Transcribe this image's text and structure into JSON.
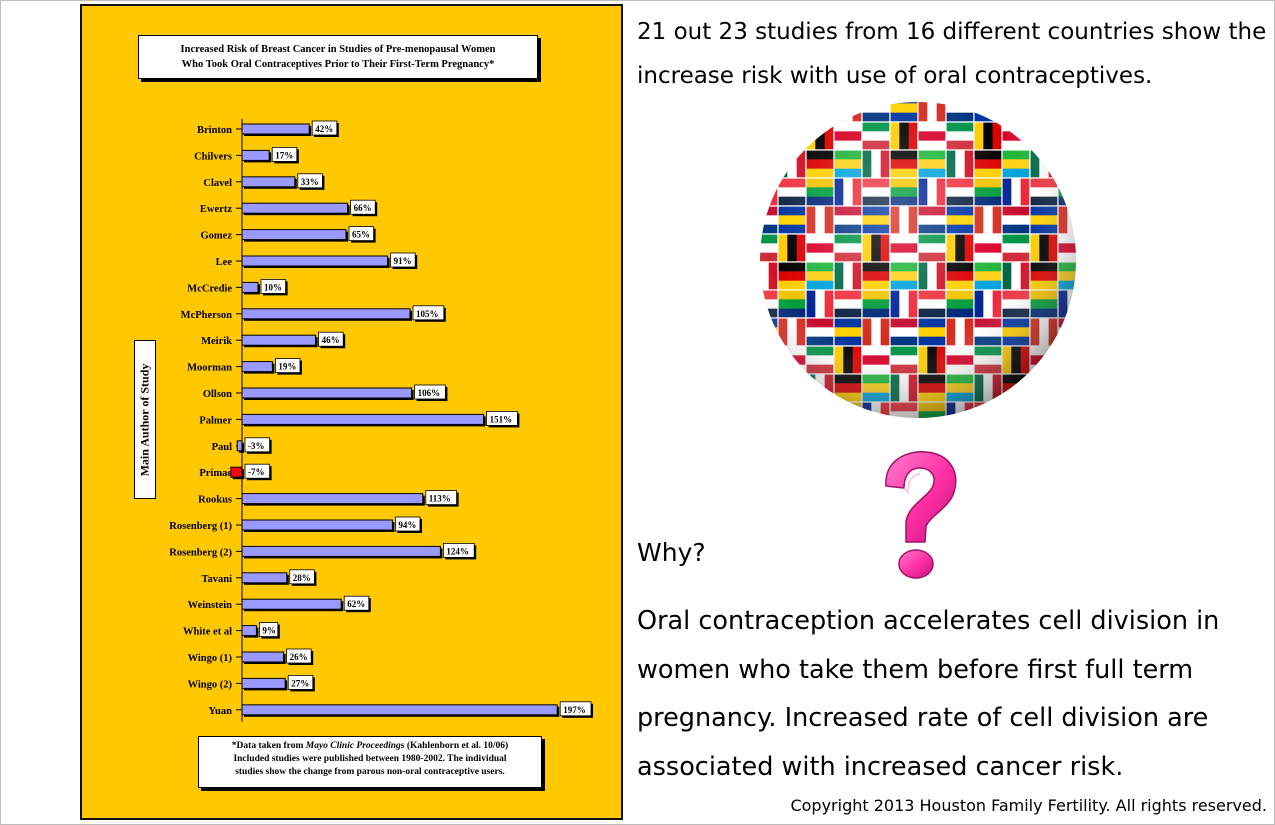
{
  "headline": "21 out 23 studies from 16 different countries show the increase risk with use of oral contraceptives.",
  "why": "Why?",
  "explanation": "Oral contraception accelerates cell division in women who take them before first full term pregnancy. Increased rate of cell division are associated with increased cancer risk.",
  "copyright": "Copyright 2013 Houston Family Fertility. All rights reserved.",
  "colors": {
    "panel_background": "#ffc800",
    "positive_bar": "#9999ff",
    "negative_bar_primae": "#ff0000",
    "question_mark": "#ff3ca8"
  },
  "images": {
    "globe": "globe made of world flags",
    "question_mark": "pink 3D question mark"
  },
  "chart_data": {
    "type": "bar",
    "orientation": "horizontal",
    "title_line1": "Increased Risk of Breast Cancer in Studies of Pre-menopausal Women",
    "title_line2": "Who Took Oral Contraceptives Prior to Their First-Term Pregnancy*",
    "ylabel": "Main Author of Study",
    "categories": [
      "Brinton",
      "Chilvers",
      "Clavel",
      "Ewertz",
      "Gomez",
      "Lee",
      "McCredie",
      "McPherson",
      "Meirik",
      "Moorman",
      "Ollson",
      "Palmer",
      "Paul",
      "Primae",
      "Rookus",
      "Rosenberg (1)",
      "Rosenberg (2)",
      "Tavani",
      "Weinstein",
      "White et al",
      "Wingo (1)",
      "Wingo (2)",
      "Yuan"
    ],
    "values": [
      42,
      17,
      33,
      66,
      65,
      91,
      10,
      105,
      46,
      19,
      106,
      151,
      -3,
      -7,
      113,
      94,
      124,
      28,
      62,
      9,
      26,
      27,
      197
    ],
    "labels": [
      "42%",
      "17%",
      "33%",
      "66%",
      "65%",
      "91%",
      "10%",
      "105%",
      "46%",
      "19%",
      "106%",
      "151%",
      "-3%",
      "-7%",
      "113%",
      "94%",
      "124%",
      "28%",
      "62%",
      "9%",
      "26%",
      "27%",
      "197%"
    ],
    "note_prefix": "*Data taken from ",
    "note_source": "Mayo Clinic Proceedings",
    "note_suffix": " (Kahlenborn et al. 10/06)",
    "note_line2": "Included studies were published between 1980-2002.  The individual",
    "note_line3": "studies show the change from parous non-oral contraceptive users."
  }
}
